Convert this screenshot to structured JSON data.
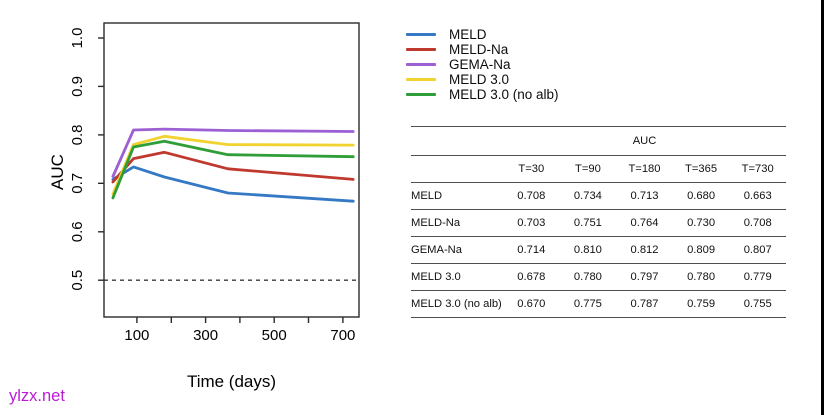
{
  "watermark": {
    "text": "ylzx.net",
    "color": "#bb1cd6"
  },
  "colors": {
    "axis": "#2b2b2b",
    "reference_line": "#3a3a3a",
    "table_rule": "#4f4f4f"
  },
  "chart_data": {
    "type": "line",
    "title": "",
    "xlabel": "Time (days)",
    "ylabel": "AUC",
    "x": [
      30,
      90,
      180,
      365,
      730
    ],
    "series": [
      {
        "name": "MELD",
        "color": "#3579c4",
        "values": [
          0.708,
          0.734,
          0.713,
          0.68,
          0.663
        ]
      },
      {
        "name": "MELD-Na",
        "color": "#c0392e",
        "values": [
          0.703,
          0.751,
          0.764,
          0.73,
          0.708
        ]
      },
      {
        "name": "GEMA-Na",
        "color": "#9c5fd4",
        "values": [
          0.714,
          0.81,
          0.812,
          0.809,
          0.807
        ]
      },
      {
        "name": "MELD 3.0",
        "color": "#f2d22e",
        "values": [
          0.678,
          0.78,
          0.797,
          0.78,
          0.779
        ]
      },
      {
        "name": "MELD 3.0 (no alb)",
        "color": "#2f9e38",
        "values": [
          0.67,
          0.775,
          0.787,
          0.759,
          0.755
        ]
      }
    ],
    "x_ticks": [
      100,
      200,
      300,
      400,
      500,
      600,
      700
    ],
    "x_tick_labels": [
      "100",
      "",
      "300",
      "",
      "500",
      "",
      "700"
    ],
    "y_ticks": [
      "0.5",
      "0.6",
      "0.7",
      "0.8",
      "0.9",
      "1.0"
    ],
    "xlim": [
      4,
      747
    ],
    "ylim": [
      0.424,
      1.031
    ],
    "reference_line": 0.5,
    "grid": false,
    "legend_position": "right-of-plot"
  },
  "table": {
    "title": "AUC",
    "columns": [
      "T=30",
      "T=90",
      "T=180",
      "T=365",
      "T=730"
    ],
    "rows": [
      {
        "label": "MELD",
        "values": [
          "0.708",
          "0.734",
          "0.713",
          "0.680",
          "0.663"
        ]
      },
      {
        "label": "MELD-Na",
        "values": [
          "0.703",
          "0.751",
          "0.764",
          "0.730",
          "0.708"
        ]
      },
      {
        "label": "GEMA-Na",
        "values": [
          "0.714",
          "0.810",
          "0.812",
          "0.809",
          "0.807"
        ]
      },
      {
        "label": "MELD 3.0",
        "values": [
          "0.678",
          "0.780",
          "0.797",
          "0.780",
          "0.779"
        ]
      },
      {
        "label": "MELD 3.0 (no alb)",
        "values": [
          "0.670",
          "0.775",
          "0.787",
          "0.759",
          "0.755"
        ]
      }
    ]
  }
}
